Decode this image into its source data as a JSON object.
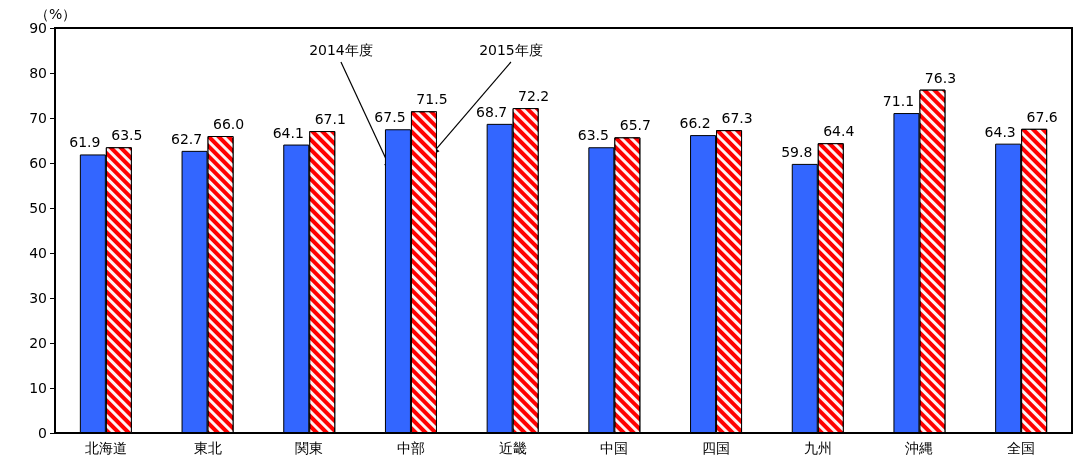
{
  "chart_data": {
    "type": "bar",
    "ylabel": "（%）",
    "categories": [
      "北海道",
      "東北",
      "関東",
      "中部",
      "近畿",
      "中国",
      "四国",
      "九州",
      "沖縄",
      "全国"
    ],
    "series": [
      {
        "name": "2014年度",
        "color": "#3366ff",
        "values": [
          61.9,
          62.7,
          64.1,
          67.5,
          68.7,
          63.5,
          66.2,
          59.8,
          71.1,
          64.3
        ]
      },
      {
        "name": "2015年度",
        "color": "#ff0000",
        "values": [
          63.5,
          66.0,
          67.1,
          71.5,
          72.2,
          65.7,
          67.3,
          64.4,
          76.3,
          67.6
        ],
        "value_labels": [
          "63.5",
          "66.0",
          "67.1",
          "71.5",
          "72.2",
          "65.7",
          "67.3",
          "64.4",
          "76.3",
          "67.6"
        ]
      }
    ],
    "ylim": [
      0,
      90
    ],
    "yticks": [
      0,
      10,
      20,
      30,
      40,
      50,
      60,
      70,
      80,
      90
    ],
    "grid": false,
    "legend": false,
    "data_labels": true
  }
}
